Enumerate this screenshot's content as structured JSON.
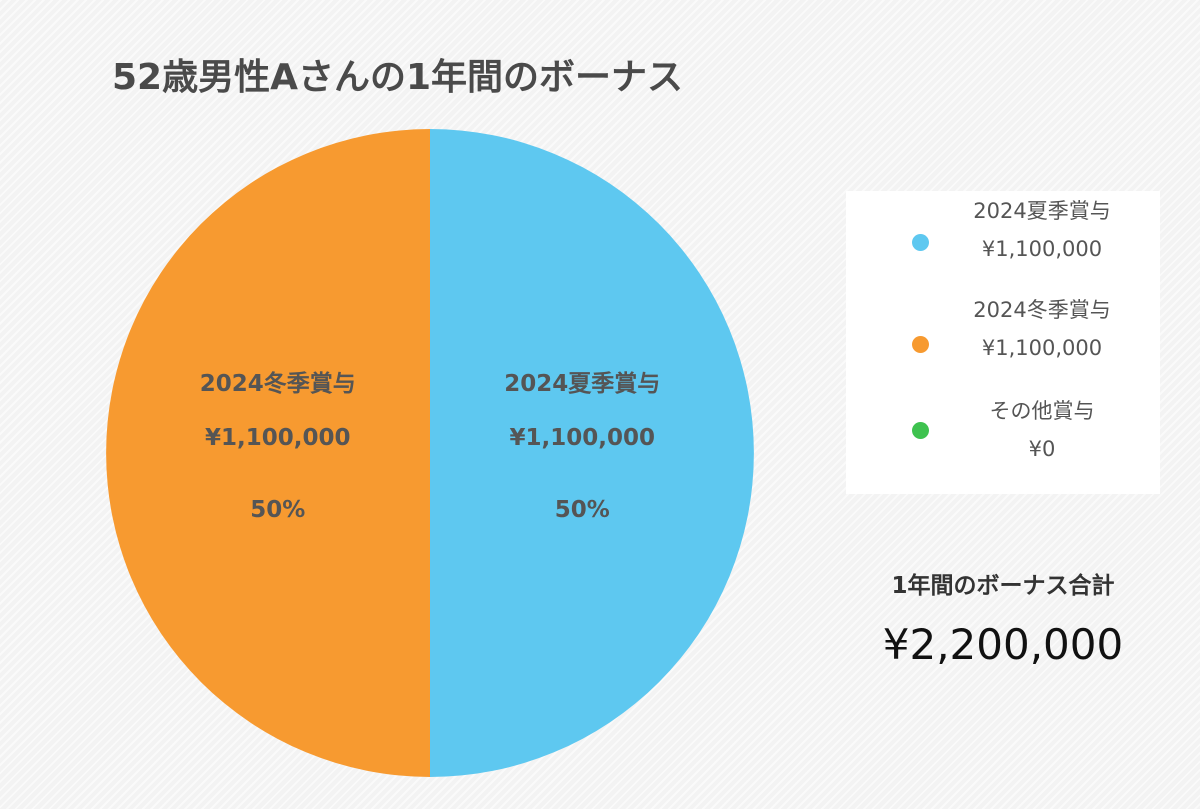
{
  "chart_data": {
    "type": "pie",
    "title": "52歳男性Aさんの1年間のボーナス",
    "slices": [
      {
        "name": "2024夏季賞与",
        "value": 1100000,
        "display_value": "¥1,100,000",
        "percent_label": "50%",
        "color": "#5ec8f0"
      },
      {
        "name": "2024冬季賞与",
        "value": 1100000,
        "display_value": "¥1,100,000",
        "percent_label": "50%",
        "color": "#f79a30"
      },
      {
        "name": "その他賞与",
        "value": 0,
        "display_value": "¥0",
        "percent_label": "",
        "color": "#3ec24f"
      }
    ],
    "legend_position": "right"
  },
  "summary": {
    "label": "1年間のボーナス合計",
    "value": "¥2,200,000"
  }
}
